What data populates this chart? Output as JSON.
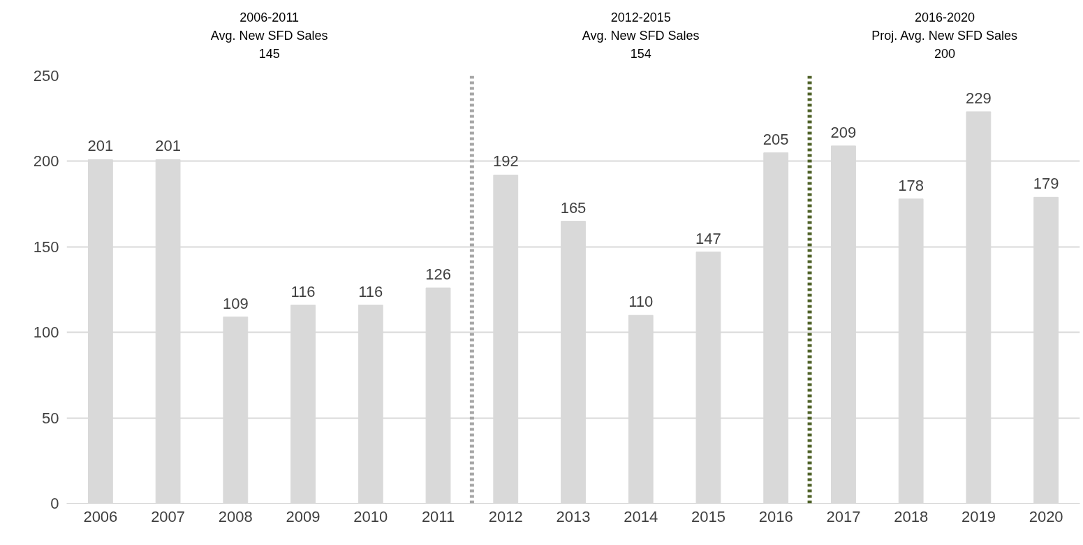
{
  "chart_data": {
    "type": "bar",
    "x": [
      2006,
      2007,
      2008,
      2009,
      2010,
      2011,
      2012,
      2013,
      2014,
      2015,
      2016,
      2017,
      2018,
      2019,
      2020
    ],
    "values": [
      201,
      201,
      109,
      116,
      116,
      126,
      192,
      165,
      110,
      147,
      205,
      209,
      178,
      229,
      179
    ],
    "color": "#d9d9d9",
    "xlim": [
      2005.5,
      2020.5
    ],
    "xticks": [
      2006,
      2007,
      2008,
      2009,
      2010,
      2011,
      2012,
      2013,
      2014,
      2015,
      2016,
      2017,
      2018,
      2019,
      2020
    ],
    "ylim": [
      0,
      250
    ],
    "yticks": [
      0,
      50,
      100,
      150,
      200,
      250
    ],
    "grid": "y",
    "data_labels": true,
    "ref_lines": [
      {
        "axis": "x",
        "value": 2011.5,
        "color": "#a6a6a6",
        "line_style": "dotted"
      },
      {
        "axis": "x",
        "value": 2016.5,
        "color": "#4f6228",
        "line_style": "dotted"
      }
    ],
    "annotations": [
      "2006-2011\nAvg. New SFD Sales\n145",
      "2012-2015\nAvg. New SFD Sales\n154",
      "2016-2020\nProj. Avg. New SFD Sales\n200"
    ]
  }
}
